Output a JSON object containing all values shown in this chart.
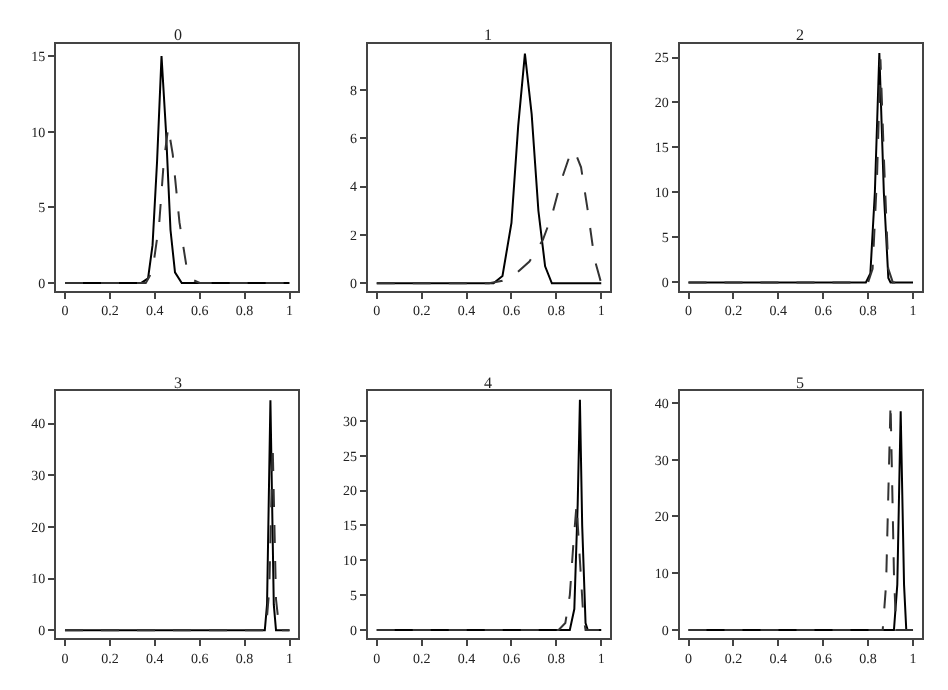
{
  "chart_data": [
    {
      "type": "line",
      "title": "0",
      "xlim": [
        -0.04,
        1.04
      ],
      "xticks": [
        0,
        0.2,
        0.4,
        0.6,
        0.8,
        1
      ],
      "ylim": [
        -0.5,
        15.8
      ],
      "yticks": [
        0,
        5,
        10,
        15
      ],
      "series": [
        {
          "color": "#000000",
          "line_style": "solid",
          "x": [
            0,
            0.34,
            0.37,
            0.39,
            0.41,
            0.43,
            0.45,
            0.47,
            0.49,
            0.52,
            1
          ],
          "values": [
            0,
            0,
            0.3,
            2.5,
            8,
            15,
            10,
            3.5,
            0.7,
            0,
            0
          ]
        },
        {
          "color": "#333333",
          "line_style": "dashed",
          "x": [
            0,
            0.36,
            0.39,
            0.42,
            0.44,
            0.46,
            0.48,
            0.51,
            0.54,
            0.57,
            0.6,
            1
          ],
          "values": [
            0,
            0,
            0.8,
            4,
            8,
            10.3,
            8.5,
            4,
            1.2,
            0.2,
            0,
            0
          ]
        }
      ]
    },
    {
      "type": "line",
      "title": "1",
      "xlim": [
        -0.04,
        1.04
      ],
      "xticks": [
        0,
        0.2,
        0.4,
        0.6,
        0.8,
        1
      ],
      "ylim": [
        -0.3,
        9.9
      ],
      "yticks": [
        0,
        2,
        4,
        6,
        8
      ],
      "series": [
        {
          "color": "#000000",
          "line_style": "solid",
          "x": [
            0,
            0.52,
            0.56,
            0.6,
            0.63,
            0.66,
            0.69,
            0.72,
            0.75,
            0.78,
            1
          ],
          "values": [
            0,
            0,
            0.3,
            2.5,
            6.5,
            9.5,
            7,
            3,
            0.7,
            0,
            0
          ]
        },
        {
          "color": "#333333",
          "line_style": "dashed",
          "x": [
            0,
            0.5,
            0.56,
            0.62,
            0.68,
            0.74,
            0.78,
            0.82,
            0.86,
            0.88,
            0.91,
            0.94,
            0.97,
            1
          ],
          "values": [
            0,
            0,
            0.1,
            0.4,
            0.9,
            1.8,
            2.8,
            4.2,
            5.3,
            5.5,
            4.8,
            3,
            1,
            0
          ]
        }
      ]
    },
    {
      "type": "line",
      "title": "2",
      "xlim": [
        -0.04,
        1.04
      ],
      "xticks": [
        0,
        0.2,
        0.4,
        0.6,
        0.8,
        1
      ],
      "ylim": [
        -0.9,
        26.5
      ],
      "yticks": [
        0,
        5,
        10,
        15,
        20,
        25
      ],
      "series": [
        {
          "color": "#000000",
          "line_style": "solid",
          "x": [
            0,
            0.79,
            0.81,
            0.83,
            0.85,
            0.87,
            0.89,
            0.9,
            1
          ],
          "values": [
            0,
            0,
            1,
            10,
            25.5,
            10,
            0.5,
            0,
            0
          ]
        },
        {
          "color": "#333333",
          "line_style": "dashed",
          "x": [
            0,
            0.8,
            0.82,
            0.84,
            0.855,
            0.87,
            0.89,
            0.91,
            1
          ],
          "values": [
            0,
            0,
            1.5,
            12,
            24.8,
            14,
            1.5,
            0,
            0
          ]
        }
      ]
    },
    {
      "type": "line",
      "title": "3",
      "xlim": [
        -0.04,
        1.04
      ],
      "xticks": [
        0,
        0.2,
        0.4,
        0.6,
        0.8,
        1
      ],
      "ylim": [
        -1.5,
        46.2
      ],
      "yticks": [
        0,
        10,
        20,
        30,
        40
      ],
      "series": [
        {
          "color": "#000000",
          "line_style": "solid",
          "x": [
            0,
            0.89,
            0.9,
            0.915,
            0.93,
            0.94,
            1
          ],
          "values": [
            0,
            0,
            5,
            44.5,
            5,
            0,
            0
          ]
        },
        {
          "color": "#333333",
          "line_style": "dashed",
          "x": [
            0,
            0.895,
            0.91,
            0.925,
            0.94,
            0.955,
            1
          ],
          "values": [
            0,
            0,
            8,
            36,
            6,
            0,
            0
          ]
        }
      ]
    },
    {
      "type": "line",
      "title": "4",
      "xlim": [
        -0.04,
        1.04
      ],
      "xticks": [
        0,
        0.2,
        0.4,
        0.6,
        0.8,
        1
      ],
      "ylim": [
        -1.15,
        34.2
      ],
      "yticks": [
        0,
        5,
        10,
        15,
        20,
        25,
        30
      ],
      "series": [
        {
          "color": "#000000",
          "line_style": "solid",
          "x": [
            0,
            0.86,
            0.88,
            0.895,
            0.905,
            0.915,
            0.93,
            0.94,
            1
          ],
          "values": [
            0,
            0,
            3,
            18,
            33,
            15,
            1,
            0,
            0
          ]
        },
        {
          "color": "#333333",
          "line_style": "dashed",
          "x": [
            0,
            0.81,
            0.84,
            0.86,
            0.875,
            0.89,
            0.905,
            0.92,
            0.93,
            1
          ],
          "values": [
            0,
            0,
            1,
            5,
            12,
            18,
            10,
            2,
            0,
            0
          ]
        }
      ]
    },
    {
      "type": "line",
      "title": "5",
      "xlim": [
        -0.04,
        1.04
      ],
      "xticks": [
        0,
        0.2,
        0.4,
        0.6,
        0.8,
        1
      ],
      "ylim": [
        -1.4,
        42
      ],
      "yticks": [
        0,
        10,
        20,
        30,
        40
      ],
      "series": [
        {
          "color": "#000000",
          "line_style": "solid",
          "x": [
            0,
            0.915,
            0.93,
            0.945,
            0.96,
            0.97,
            1
          ],
          "values": [
            0,
            0,
            8,
            38.5,
            8,
            0,
            0
          ]
        },
        {
          "color": "#333333",
          "line_style": "dashed",
          "x": [
            0,
            0.865,
            0.88,
            0.9,
            0.915,
            0.925,
            1
          ],
          "values": [
            0,
            0,
            8,
            40,
            10,
            0,
            0
          ]
        }
      ]
    }
  ]
}
